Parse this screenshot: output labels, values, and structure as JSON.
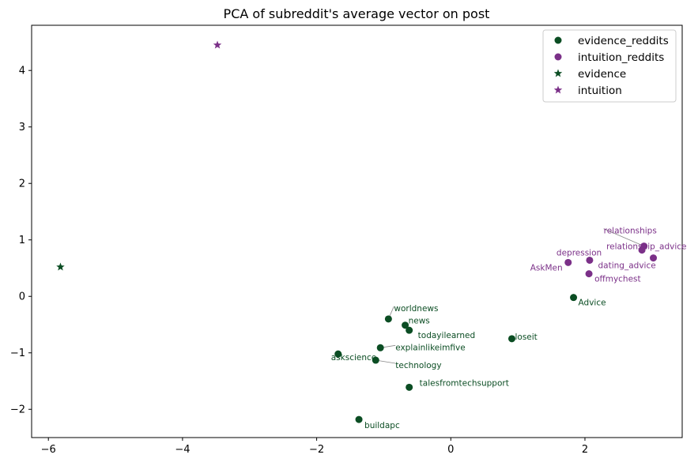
{
  "chart_data": {
    "type": "scatter",
    "title": "PCA of subreddit's average vector on post",
    "xlabel": "",
    "ylabel": "",
    "xlim": [
      -6.25,
      3.45
    ],
    "ylim": [
      -2.5,
      4.8
    ],
    "xticks": [
      -6,
      -4,
      -2,
      0,
      2
    ],
    "yticks": [
      -2,
      -1,
      0,
      1,
      2,
      3,
      4
    ],
    "grid": false,
    "legend_position": "top-right",
    "colors": {
      "evidence": "#0b4d23",
      "intuition": "#7b3088"
    },
    "series": [
      {
        "name": "evidence_reddits",
        "marker": "circle",
        "color": "#0b4d23",
        "points": [
          {
            "label": "worldnews",
            "x": -0.93,
            "y": -0.4
          },
          {
            "label": "news",
            "x": -0.68,
            "y": -0.51
          },
          {
            "label": "todayilearned",
            "x": -0.62,
            "y": -0.6
          },
          {
            "label": "explainlikeimfive",
            "x": -1.05,
            "y": -0.91
          },
          {
            "label": "askscience",
            "x": -1.68,
            "y": -1.02
          },
          {
            "label": "technology",
            "x": -1.12,
            "y": -1.13
          },
          {
            "label": "talesfromtechsupport",
            "x": -0.62,
            "y": -1.61
          },
          {
            "label": "buildapc",
            "x": -1.37,
            "y": -2.18
          },
          {
            "label": "loseit",
            "x": 0.91,
            "y": -0.75
          },
          {
            "label": "Advice",
            "x": 1.83,
            "y": -0.02
          }
        ]
      },
      {
        "name": "intuition_reddits",
        "marker": "circle",
        "color": "#7b3088",
        "points": [
          {
            "label": "relationships",
            "x": 2.88,
            "y": 0.89
          },
          {
            "label": "relationship_advice",
            "x": 2.85,
            "y": 0.82
          },
          {
            "label": "depression",
            "x": 2.07,
            "y": 0.64
          },
          {
            "label": "AskMen",
            "x": 1.75,
            "y": 0.6
          },
          {
            "label": "dating_advice",
            "x": 3.02,
            "y": 0.68
          },
          {
            "label": "offmychest",
            "x": 2.06,
            "y": 0.4
          }
        ]
      },
      {
        "name": "evidence",
        "marker": "star",
        "color": "#0b4d23",
        "points": [
          {
            "label": "",
            "x": -5.82,
            "y": 0.52
          }
        ]
      },
      {
        "name": "intuition",
        "marker": "star",
        "color": "#7b3088",
        "points": [
          {
            "label": "",
            "x": -3.48,
            "y": 4.45
          }
        ]
      }
    ]
  }
}
